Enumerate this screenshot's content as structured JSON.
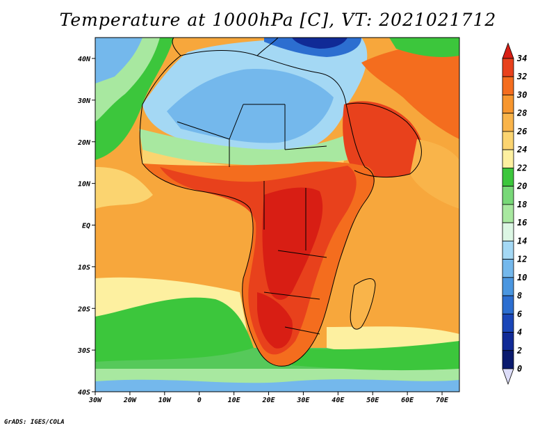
{
  "title": "Temperature at 1000hPa [C], VT: 2021021712",
  "credit": "GrADS: IGES/COLA",
  "map": {
    "lon_labels": [
      "30W",
      "20W",
      "10W",
      "0",
      "10E",
      "20E",
      "30E",
      "40E",
      "50E",
      "60E",
      "70E"
    ],
    "lat_labels": [
      "40N",
      "30N",
      "20N",
      "10N",
      "EQ",
      "10S",
      "20S",
      "30S",
      "40S"
    ]
  },
  "colorbar": {
    "labels": [
      "34",
      "32",
      "30",
      "28",
      "26",
      "24",
      "22",
      "20",
      "18",
      "16",
      "14",
      "12",
      "10",
      "8",
      "6",
      "4",
      "2",
      "0"
    ],
    "colors": [
      "#d81e14",
      "#e8411c",
      "#f46d1e",
      "#f7962e",
      "#f9b44a",
      "#fbd470",
      "#fdf0a0",
      "#3cc63c",
      "#78d878",
      "#a8e8a0",
      "#dcf6e4",
      "#a4d8f4",
      "#74b8ec",
      "#4a96e0",
      "#2c6ed0",
      "#1a46b8",
      "#102a96",
      "#0a1a6e"
    ]
  }
}
